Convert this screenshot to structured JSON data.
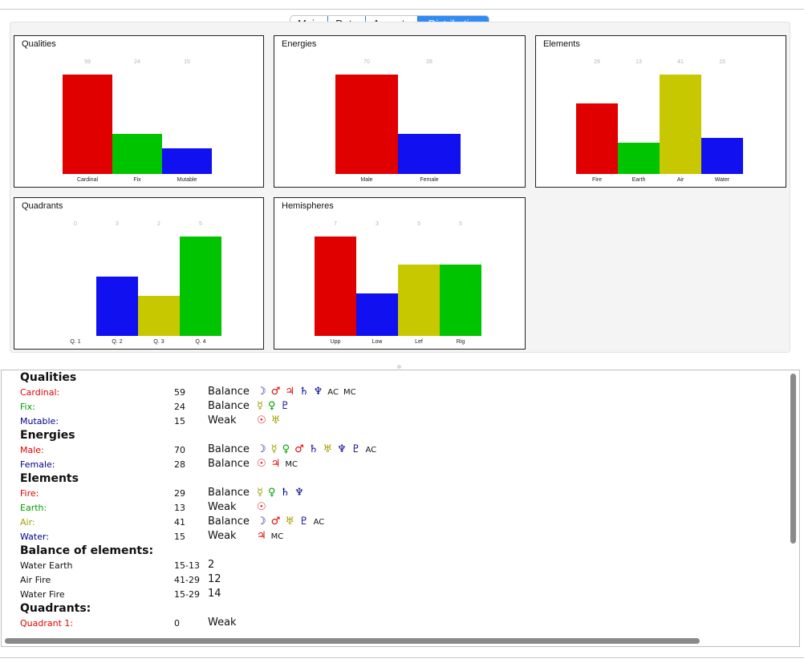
{
  "tabs": [
    {
      "label": "Main",
      "active": false
    },
    {
      "label": "Data",
      "active": false
    },
    {
      "label": "Aspects",
      "active": false
    },
    {
      "label": "Distribution",
      "active": true
    }
  ],
  "charts": [
    {
      "title": "Qualities",
      "categories": [
        "Cardinal",
        "Fix",
        "Mutable"
      ],
      "values": [
        59,
        24,
        15
      ]
    },
    {
      "title": "Energies",
      "categories": [
        "Male",
        "Female"
      ],
      "values": [
        70,
        28
      ]
    },
    {
      "title": "Elements",
      "categories": [
        "Fire",
        "Earth",
        "Air",
        "Water"
      ],
      "values": [
        29,
        13,
        41,
        15
      ]
    },
    {
      "title": "Quadrants",
      "categories": [
        "Q. 1",
        "Q. 2",
        "Q. 3",
        "Q. 4"
      ],
      "values": [
        0,
        3,
        2,
        5
      ]
    },
    {
      "title": "Hemispheres",
      "categories": [
        "Upp",
        "Low",
        "Lef",
        "Rig"
      ],
      "values": [
        7,
        3,
        5,
        5
      ]
    }
  ],
  "chart_data": [
    {
      "type": "bar",
      "title": "Qualities",
      "categories": [
        "Cardinal",
        "Fix",
        "Mutable"
      ],
      "values": [
        59,
        24,
        15
      ],
      "colors": [
        "#e00000",
        "#00c400",
        "#1010f0"
      ],
      "ylim": [
        0,
        59
      ]
    },
    {
      "type": "bar",
      "title": "Energies",
      "categories": [
        "Male",
        "Female"
      ],
      "values": [
        70,
        28
      ],
      "colors": [
        "#e00000",
        "#1010f0"
      ],
      "ylim": [
        0,
        70
      ]
    },
    {
      "type": "bar",
      "title": "Elements",
      "categories": [
        "Fire",
        "Earth",
        "Air",
        "Water"
      ],
      "values": [
        29,
        13,
        41,
        15
      ],
      "colors": [
        "#e00000",
        "#00c400",
        "#c8c800",
        "#1010f0"
      ],
      "ylim": [
        0,
        41
      ]
    },
    {
      "type": "bar",
      "title": "Quadrants",
      "categories": [
        "Q. 1",
        "Q. 2",
        "Q. 3",
        "Q. 4"
      ],
      "values": [
        0,
        3,
        2,
        5
      ],
      "colors": [
        "#e00000",
        "#1010f0",
        "#c8c800",
        "#00c400"
      ],
      "ylim": [
        0,
        5
      ]
    },
    {
      "type": "bar",
      "title": "Hemispheres",
      "categories": [
        "Upp",
        "Low",
        "Lef",
        "Rig"
      ],
      "values": [
        7,
        3,
        5,
        5
      ],
      "colors": [
        "#e00000",
        "#1010f0",
        "#c8c800",
        "#00c400"
      ],
      "ylim": [
        0,
        7
      ]
    }
  ],
  "colors": {
    "red": "#e00000",
    "green": "#00a000",
    "blue": "#00008b",
    "olive": "#a0a000",
    "tab_active": "#2f8cf5"
  },
  "report": [
    {
      "kind": "heading",
      "text": "Qualities"
    },
    {
      "kind": "row",
      "label": "Cardinal:",
      "color": "red",
      "num": "59",
      "status": "Balance",
      "planets": [
        [
          "☽",
          "blue"
        ],
        [
          "♂",
          "red"
        ],
        [
          "♃",
          "red"
        ],
        [
          "♄",
          "blue"
        ],
        [
          "♆",
          "blue"
        ],
        [
          "AC",
          "black"
        ],
        [
          "MC",
          "black"
        ]
      ]
    },
    {
      "kind": "row",
      "label": "Fix:",
      "color": "green",
      "num": "24",
      "status": "Balance",
      "planets": [
        [
          "☿",
          "olive"
        ],
        [
          "♀",
          "green"
        ],
        [
          "♇",
          "blue"
        ]
      ]
    },
    {
      "kind": "row",
      "label": "Mutable:",
      "color": "blue",
      "num": "15",
      "status": "Weak",
      "planets": [
        [
          "☉",
          "red"
        ],
        [
          "♅",
          "olive"
        ]
      ]
    },
    {
      "kind": "heading",
      "text": "Energies"
    },
    {
      "kind": "row",
      "label": "Male:",
      "color": "red",
      "num": "70",
      "status": "Balance",
      "planets": [
        [
          "☽",
          "blue"
        ],
        [
          "☿",
          "olive"
        ],
        [
          "♀",
          "green"
        ],
        [
          "♂",
          "red"
        ],
        [
          "♄",
          "blue"
        ],
        [
          "♅",
          "olive"
        ],
        [
          "♆",
          "blue"
        ],
        [
          "♇",
          "blue"
        ],
        [
          "AC",
          "black"
        ]
      ]
    },
    {
      "kind": "row",
      "label": "Female:",
      "color": "blue",
      "num": "28",
      "status": "Balance",
      "planets": [
        [
          "☉",
          "red"
        ],
        [
          "♃",
          "red"
        ],
        [
          "MC",
          "black"
        ]
      ]
    },
    {
      "kind": "heading",
      "text": "Elements"
    },
    {
      "kind": "row",
      "label": "Fire:",
      "color": "red",
      "num": "29",
      "status": "Balance",
      "planets": [
        [
          "☿",
          "olive"
        ],
        [
          "♀",
          "green"
        ],
        [
          "♄",
          "blue"
        ],
        [
          "♆",
          "blue"
        ]
      ]
    },
    {
      "kind": "row",
      "label": "Earth:",
      "color": "green",
      "num": "13",
      "status": "Weak",
      "planets": [
        [
          "☉",
          "red"
        ]
      ]
    },
    {
      "kind": "row",
      "label": "Air:",
      "color": "olive",
      "num": "41",
      "status": "Balance",
      "planets": [
        [
          "☽",
          "blue"
        ],
        [
          "♂",
          "red"
        ],
        [
          "♅",
          "olive"
        ],
        [
          "♇",
          "blue"
        ],
        [
          "AC",
          "black"
        ]
      ]
    },
    {
      "kind": "row",
      "label": "Water:",
      "color": "blue",
      "num": "15",
      "status": "Weak",
      "planets": [
        [
          "♃",
          "red"
        ],
        [
          "MC",
          "black"
        ]
      ]
    },
    {
      "kind": "heading",
      "text": "Balance of elements:"
    },
    {
      "kind": "row",
      "label": "Water Earth",
      "color": "black",
      "num": "15-13",
      "status": "2",
      "planets": []
    },
    {
      "kind": "row",
      "label": "Air Fire",
      "color": "black",
      "num": "41-29",
      "status": "12",
      "planets": []
    },
    {
      "kind": "row",
      "label": "Water Fire",
      "color": "black",
      "num": "15-29",
      "status": "14",
      "planets": []
    },
    {
      "kind": "heading",
      "text": "Quadrants:"
    },
    {
      "kind": "row",
      "label": "Quadrant 1:",
      "color": "red",
      "num": "0",
      "status": "Weak",
      "planets": []
    }
  ]
}
